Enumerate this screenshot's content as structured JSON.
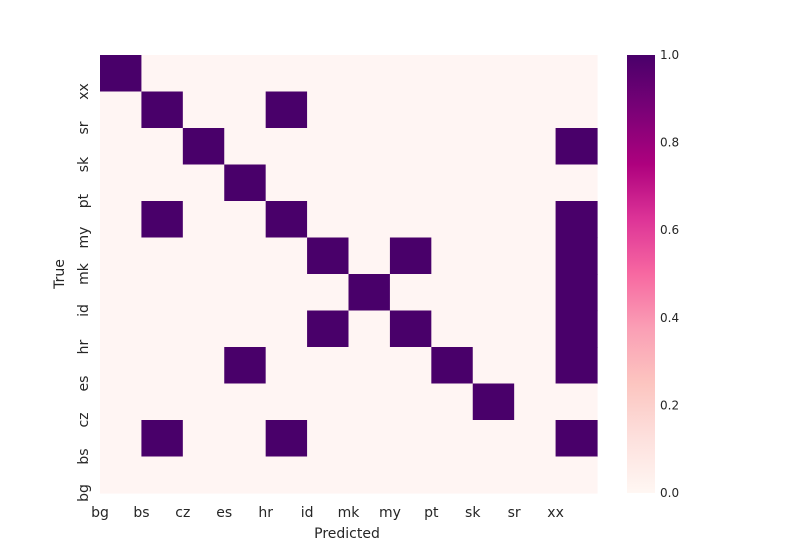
{
  "chart_data": {
    "type": "heatmap",
    "xlabel": "Predicted",
    "ylabel": "True",
    "x_categories": [
      "bg",
      "bs",
      "cz",
      "es",
      "hr",
      "id",
      "mk",
      "my",
      "pt",
      "sk",
      "sr",
      "xx"
    ],
    "y_categories_bottom_to_top": [
      "bg",
      "bs",
      "cz",
      "es",
      "hr",
      "id",
      "mk",
      "my",
      "pt",
      "sk",
      "sr",
      "xx"
    ],
    "matrix_rows_top_to_bottom": [
      [
        1,
        0,
        0,
        0,
        0,
        0,
        0,
        0,
        0,
        0,
        0,
        0
      ],
      [
        0,
        1,
        0,
        0,
        1,
        0,
        0,
        0,
        0,
        0,
        0,
        0
      ],
      [
        0,
        0,
        1,
        0,
        0,
        0,
        0,
        0,
        0,
        0,
        0,
        1
      ],
      [
        0,
        0,
        0,
        1,
        0,
        0,
        0,
        0,
        0,
        0,
        0,
        0
      ],
      [
        0,
        1,
        0,
        0,
        1,
        0,
        0,
        0,
        0,
        0,
        0,
        1
      ],
      [
        0,
        0,
        0,
        0,
        0,
        1,
        0,
        1,
        0,
        0,
        0,
        1
      ],
      [
        0,
        0,
        0,
        0,
        0,
        0,
        1,
        0,
        0,
        0,
        0,
        1
      ],
      [
        0,
        0,
        0,
        0,
        0,
        1,
        0,
        1,
        0,
        0,
        0,
        1
      ],
      [
        0,
        0,
        0,
        1,
        0,
        0,
        0,
        0,
        1,
        0,
        0,
        1
      ],
      [
        0,
        0,
        0,
        0,
        0,
        0,
        0,
        0,
        0,
        1,
        0,
        0
      ],
      [
        0,
        1,
        0,
        0,
        1,
        0,
        0,
        0,
        0,
        0,
        0,
        1
      ],
      [
        0,
        0,
        0,
        0,
        0,
        0,
        0,
        0,
        0,
        0,
        0,
        0
      ]
    ],
    "colorbar": {
      "range": [
        0.0,
        1.0
      ],
      "ticks": [
        "0.0",
        "0.2",
        "0.4",
        "0.6",
        "0.8",
        "1.0"
      ],
      "colormap": "RdPu",
      "low_color": "#fff5f3",
      "high_color": "#49006a"
    },
    "grid": false
  }
}
